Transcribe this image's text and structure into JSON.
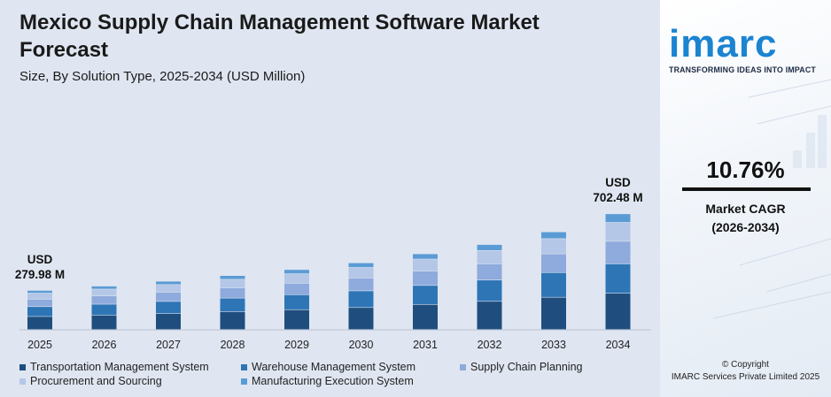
{
  "title": "Mexico Supply Chain Management Software Market Forecast",
  "subtitle": "Size, By Solution Type, 2025-2034 (USD Million)",
  "colors": {
    "tms": "#1f4e7e",
    "wms": "#2e75b6",
    "scp": "#8faadc",
    "procurement": "#b4c7e7",
    "mes": "#5b9bd5"
  },
  "chart_data": {
    "type": "bar",
    "stacked": true,
    "categories": [
      "2025",
      "2026",
      "2027",
      "2028",
      "2029",
      "2030",
      "2031",
      "2032",
      "2033",
      "2034"
    ],
    "series": [
      {
        "name": "Transportation Management System",
        "color_key": "tms",
        "values": [
          45.6,
          50.5,
          56,
          62.8,
          69.5,
          77,
          87.9,
          98.7,
          113,
          126.8
        ]
      },
      {
        "name": "Warehouse Management System",
        "color_key": "wms",
        "values": [
          34.5,
          38.2,
          42.4,
          47.2,
          52.4,
          58.4,
          66.4,
          74.4,
          86.4,
          103
        ]
      },
      {
        "name": "Supply Chain Planning",
        "color_key": "scp",
        "values": [
          25.9,
          28.9,
          32.2,
          35.9,
          40,
          44.6,
          50.4,
          56.5,
          65.3,
          79
        ]
      },
      {
        "name": "Procurement and Sourcing",
        "color_key": "procurement",
        "values": [
          21.4,
          23.9,
          26.7,
          29.9,
          33.4,
          37.3,
          41.9,
          47.1,
          53.4,
          66.2
        ]
      },
      {
        "name": "Manufacturing Execution System",
        "color_key": "mes",
        "values": [
          9.5,
          10.5,
          11.7,
          13,
          14.5,
          16.1,
          18.3,
          20.7,
          23.7,
          30
        ]
      }
    ],
    "annotations": [
      {
        "category": "2025",
        "line1": "USD",
        "line2": "279.98 M"
      },
      {
        "category": "2034",
        "line1": "USD",
        "line2": "702.48 M"
      }
    ]
  },
  "legend_rows": [
    [
      "Transportation Management System",
      "Warehouse Management System",
      "Supply Chain Planning"
    ],
    [
      "Procurement and Sourcing",
      "Manufacturing Execution System"
    ]
  ],
  "brand": {
    "logo_text": "imarc",
    "tagline": "TRANSFORMING IDEAS INTO IMPACT"
  },
  "cagr": {
    "value": "10.76%",
    "label_line1": "Market CAGR",
    "label_line2": "(2026-2034)"
  },
  "copyright": {
    "line1": "© Copyright",
    "line2": "IMARC Services Private Limited 2025"
  }
}
